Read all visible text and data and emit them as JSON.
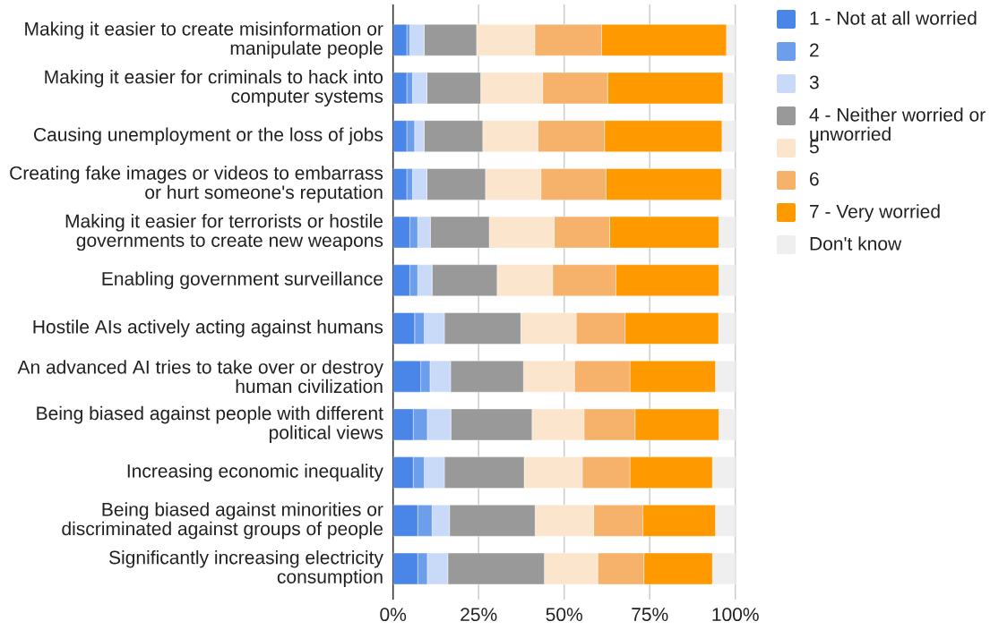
{
  "chart_data": {
    "type": "bar",
    "orientation": "horizontal",
    "stacked": true,
    "categories": [
      "Making it easier to create misinformation or manipulate people",
      "Making it easier for criminals to hack into computer systems",
      "Causing unemployment or the loss of jobs",
      "Creating fake images or videos to embarrass or hurt someone's reputation",
      "Making it easier for terrorists or hostile governments to create new weapons",
      "Enabling government surveillance",
      "Hostile AIs actively acting against humans",
      "An advanced AI tries to take over or destroy human civilization",
      "Being biased against people with different political views",
      "Increasing economic inequality",
      "Being biased against minorities or discriminated against groups of people",
      "Significantly increasing electricity consumption"
    ],
    "series": [
      {
        "name": "1 - Not at all worried",
        "color": "#4a86e8",
        "values": [
          4.0,
          4.0,
          4.0,
          4.0,
          4.9,
          4.9,
          6.3,
          8.1,
          5.9,
          5.9,
          7.2,
          7.2
        ]
      },
      {
        "name": "2",
        "color": "#6d9eeb",
        "values": [
          0.9,
          1.7,
          2.3,
          1.7,
          2.3,
          2.3,
          2.8,
          2.7,
          4.1,
          3.2,
          4.2,
          2.8
        ]
      },
      {
        "name": "3",
        "color": "#c9daf8",
        "values": [
          4.2,
          4.2,
          2.8,
          4.2,
          3.7,
          4.2,
          5.9,
          6.0,
          6.9,
          5.9,
          5.1,
          6.0
        ]
      },
      {
        "name": "4 - Neither worried or unworried",
        "color": "#999999",
        "values": [
          15.3,
          15.7,
          17.1,
          17.1,
          17.2,
          19.0,
          22.3,
          21.3,
          23.7,
          23.3,
          25.0,
          28.2
        ]
      },
      {
        "name": "5",
        "color": "#fce5cd",
        "values": [
          17.0,
          18.1,
          16.1,
          16.2,
          19.0,
          16.2,
          16.2,
          14.9,
          15.2,
          17.0,
          17.1,
          15.6
        ]
      },
      {
        "name": "6",
        "color": "#f6b26b",
        "values": [
          19.5,
          19.0,
          19.5,
          19.0,
          16.2,
          18.5,
          14.3,
          16.2,
          14.9,
          13.9,
          14.4,
          13.5
        ]
      },
      {
        "name": "7 - Very worried",
        "color": "#ff9900",
        "values": [
          36.5,
          33.7,
          34.3,
          33.8,
          31.9,
          30.1,
          27.3,
          25.0,
          24.5,
          24.1,
          21.2,
          20.0
        ]
      },
      {
        "name": "Don't know",
        "color": "#efefef",
        "values": [
          2.6,
          3.6,
          3.9,
          4.0,
          4.8,
          4.8,
          4.9,
          5.8,
          4.8,
          6.7,
          5.8,
          6.7
        ]
      }
    ],
    "xlim": [
      0,
      100
    ],
    "xticks": [
      {
        "value": 0,
        "label": "0%"
      },
      {
        "value": 25,
        "label": "25%"
      },
      {
        "value": 50,
        "label": "50%"
      },
      {
        "value": 75,
        "label": "75%"
      },
      {
        "value": 100,
        "label": "100%"
      }
    ],
    "grid": "x",
    "legend": "top right"
  }
}
